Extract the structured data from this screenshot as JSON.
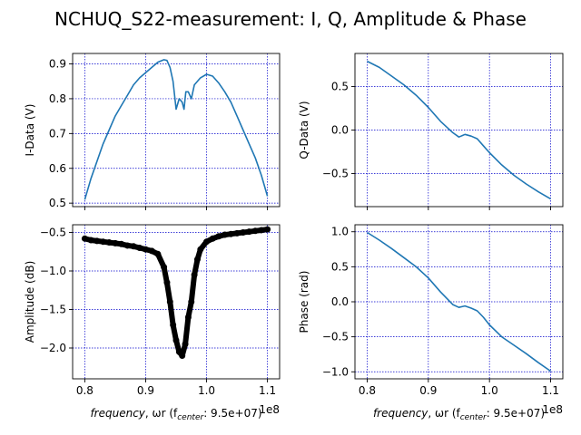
{
  "figure": {
    "title": "NCHUQ_S22-measurement: I, Q, Amplitude & Phase",
    "xlabel_italic": "frequency",
    "xlabel_rest": ", ωr (f",
    "xlabel_sub": "center",
    "xlabel_tail": ":  9.5e+07)",
    "x_offset": "1e8",
    "line_color": "#1f77b4",
    "marker_color": "#000000",
    "grid_color": "#0000cc"
  },
  "chart_data": [
    {
      "id": "i-data",
      "type": "line",
      "ylabel": "I-Data (V)",
      "xlim": [
        0.78,
        1.12
      ],
      "ylim": [
        0.49,
        0.93
      ],
      "xticks": [
        0.8,
        0.9,
        1.0,
        1.1
      ],
      "xtick_labels": [],
      "yticks": [
        0.5,
        0.6,
        0.7,
        0.8,
        0.9
      ],
      "ytick_labels": [
        "0.5",
        "0.6",
        "0.7",
        "0.8",
        "0.9"
      ],
      "grid": true,
      "x": [
        0.8,
        0.81,
        0.82,
        0.83,
        0.84,
        0.85,
        0.86,
        0.87,
        0.88,
        0.89,
        0.9,
        0.91,
        0.92,
        0.93,
        0.935,
        0.94,
        0.945,
        0.95,
        0.955,
        0.96,
        0.963,
        0.966,
        0.97,
        0.975,
        0.98,
        0.99,
        1.0,
        1.01,
        1.02,
        1.03,
        1.04,
        1.05,
        1.06,
        1.07,
        1.08,
        1.09,
        1.1
      ],
      "y": [
        0.51,
        0.57,
        0.62,
        0.67,
        0.71,
        0.75,
        0.78,
        0.81,
        0.84,
        0.86,
        0.875,
        0.89,
        0.905,
        0.912,
        0.91,
        0.89,
        0.85,
        0.77,
        0.8,
        0.79,
        0.77,
        0.82,
        0.82,
        0.8,
        0.84,
        0.86,
        0.87,
        0.865,
        0.845,
        0.82,
        0.79,
        0.75,
        0.71,
        0.67,
        0.63,
        0.58,
        0.52
      ]
    },
    {
      "id": "q-data",
      "type": "line",
      "ylabel": "Q-Data (V)",
      "xlim": [
        0.78,
        1.12
      ],
      "ylim": [
        -0.88,
        0.88
      ],
      "xticks": [
        0.8,
        0.9,
        1.0,
        1.1
      ],
      "xtick_labels": [],
      "yticks": [
        -0.5,
        0.0,
        0.5
      ],
      "ytick_labels": [
        "−0.5",
        "0.0",
        "0.5"
      ],
      "grid": true,
      "x": [
        0.8,
        0.82,
        0.84,
        0.86,
        0.88,
        0.9,
        0.92,
        0.94,
        0.95,
        0.96,
        0.97,
        0.98,
        0.99,
        1.0,
        1.02,
        1.04,
        1.06,
        1.08,
        1.1
      ],
      "y": [
        0.79,
        0.72,
        0.62,
        0.52,
        0.4,
        0.26,
        0.1,
        -0.03,
        -0.08,
        -0.05,
        -0.07,
        -0.1,
        -0.18,
        -0.26,
        -0.4,
        -0.52,
        -0.62,
        -0.71,
        -0.79
      ]
    },
    {
      "id": "amplitude",
      "type": "scatter",
      "ylabel": "Amplitude (dB)",
      "xlim": [
        0.78,
        1.12
      ],
      "ylim": [
        -2.4,
        -0.4
      ],
      "xticks": [
        0.8,
        0.9,
        1.0,
        1.1
      ],
      "xtick_labels": [
        "0.8",
        "0.9",
        "1.0",
        "1.1"
      ],
      "yticks": [
        -2.0,
        -1.5,
        -1.0,
        -0.5
      ],
      "ytick_labels": [
        "−2.0",
        "−1.5",
        "−1.0",
        "−0.5"
      ],
      "grid": true,
      "x": [
        0.8,
        0.81,
        0.82,
        0.83,
        0.84,
        0.85,
        0.86,
        0.87,
        0.88,
        0.89,
        0.9,
        0.91,
        0.92,
        0.93,
        0.935,
        0.94,
        0.945,
        0.95,
        0.955,
        0.96,
        0.965,
        0.97,
        0.975,
        0.98,
        0.985,
        0.99,
        1.0,
        1.01,
        1.02,
        1.03,
        1.04,
        1.05,
        1.06,
        1.07,
        1.08,
        1.09,
        1.1
      ],
      "y": [
        -0.58,
        -0.6,
        -0.61,
        -0.62,
        -0.63,
        -0.64,
        -0.65,
        -0.67,
        -0.68,
        -0.7,
        -0.72,
        -0.74,
        -0.78,
        -0.95,
        -1.15,
        -1.4,
        -1.7,
        -1.9,
        -2.05,
        -2.1,
        -1.95,
        -1.6,
        -1.4,
        -1.05,
        -0.85,
        -0.72,
        -0.62,
        -0.58,
        -0.55,
        -0.53,
        -0.52,
        -0.51,
        -0.5,
        -0.49,
        -0.48,
        -0.47,
        -0.46
      ]
    },
    {
      "id": "phase",
      "type": "line",
      "ylabel": "Phase (rad)",
      "xlim": [
        0.78,
        1.12
      ],
      "ylim": [
        -1.1,
        1.1
      ],
      "xticks": [
        0.8,
        0.9,
        1.0,
        1.1
      ],
      "xtick_labels": [
        "0.8",
        "0.9",
        "1.0",
        "1.1"
      ],
      "yticks": [
        -1.0,
        -0.5,
        0.0,
        0.5,
        1.0
      ],
      "ytick_labels": [
        "−1.0",
        "−0.5",
        "0.0",
        "0.5",
        "1.0"
      ],
      "grid": true,
      "x": [
        0.8,
        0.82,
        0.84,
        0.86,
        0.88,
        0.9,
        0.92,
        0.94,
        0.95,
        0.96,
        0.97,
        0.98,
        0.99,
        1.0,
        1.02,
        1.04,
        1.06,
        1.08,
        1.1
      ],
      "y": [
        0.99,
        0.88,
        0.76,
        0.63,
        0.5,
        0.34,
        0.14,
        -0.04,
        -0.08,
        -0.06,
        -0.09,
        -0.13,
        -0.22,
        -0.33,
        -0.5,
        -0.62,
        -0.74,
        -0.87,
        -0.99
      ]
    }
  ]
}
